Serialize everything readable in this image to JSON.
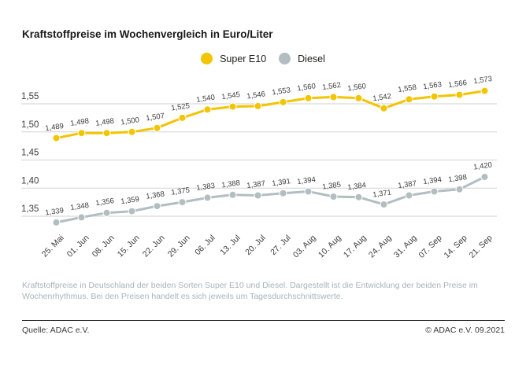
{
  "title": "Kraftstoffpreise im Wochenvergleich in Euro/Liter",
  "legend": [
    {
      "label": "Super E10",
      "color": "#f3c400"
    },
    {
      "label": "Diesel",
      "color": "#b2bec0"
    }
  ],
  "chart_data": {
    "type": "line",
    "title": "Kraftstoffpreise im Wochenvergleich in Euro/Liter",
    "categories": [
      "25. Mai",
      "01. Jun",
      "08. Jun",
      "15. Jun",
      "22. Jun",
      "29. Jun",
      "06. Jul",
      "13. Jul",
      "20. Jul",
      "27. Jul",
      "03. Aug",
      "10. Aug",
      "17. Aug",
      "24. Aug",
      "31. Aug",
      "07. Sep",
      "14. Sep",
      "21. Sep"
    ],
    "series": [
      {
        "name": "Super E10",
        "color": "#f3c400",
        "values": [
          1.489,
          1.498,
          1.498,
          1.5,
          1.507,
          1.525,
          1.54,
          1.545,
          1.546,
          1.553,
          1.56,
          1.562,
          1.56,
          1.542,
          1.558,
          1.563,
          1.566,
          1.573
        ]
      },
      {
        "name": "Diesel",
        "color": "#b2bec0",
        "values": [
          1.339,
          1.348,
          1.356,
          1.359,
          1.368,
          1.375,
          1.383,
          1.388,
          1.387,
          1.391,
          1.394,
          1.385,
          1.384,
          1.371,
          1.387,
          1.394,
          1.398,
          1.42
        ]
      }
    ],
    "xlabel": "",
    "ylabel": "Euro/Liter",
    "yticks": [
      1.55,
      1.5,
      1.45,
      1.4,
      1.35
    ],
    "ylim": [
      1.32,
      1.59
    ],
    "grid": true,
    "legend_position": "top",
    "decimal_separator": ",",
    "gridline_color": "#d2d2d2"
  },
  "footer": {
    "description": "Kraftstoffpreise in Deutschland der beiden Sorten Super E10 und Diesel. Dargestellt ist die Entwicklung der beiden Preise im Wochenrhythmus. Bei den Preisen handelt es sich jeweils um Tagesdurchschnittswerte.",
    "source": "Quelle: ADAC e.V.",
    "copyright": "© ADAC e.V. 09.2021"
  }
}
